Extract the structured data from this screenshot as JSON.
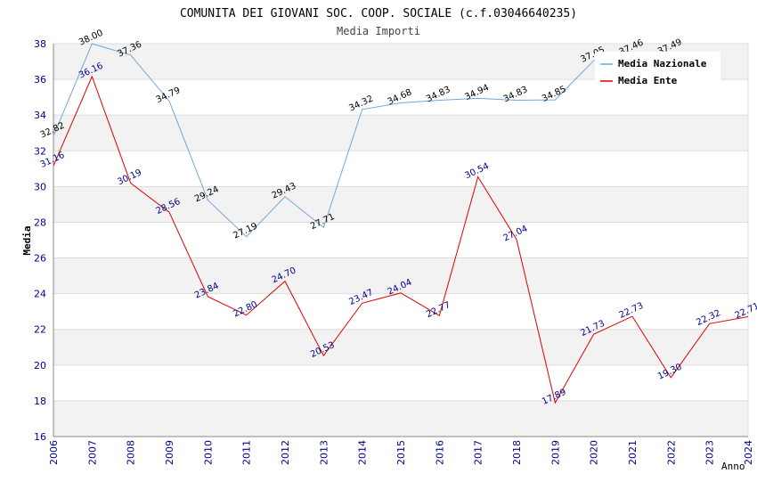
{
  "chart_data": {
    "type": "line",
    "title": "COMUNITA DEI GIOVANI SOC. COOP. SOCIALE (c.f.03046640235)",
    "subtitle": "Media Importi",
    "xlabel": "Anno",
    "ylabel": "Media",
    "ylim": [
      16,
      38
    ],
    "yticks": [
      "16",
      "18",
      "20",
      "22",
      "24",
      "26",
      "28",
      "30",
      "32",
      "34",
      "36",
      "38"
    ],
    "x": [
      "2006",
      "2007",
      "2008",
      "2009",
      "2010",
      "2011",
      "2012",
      "2013",
      "2014",
      "2015",
      "2016",
      "2017",
      "2018",
      "2019",
      "2020",
      "2021",
      "2022",
      "2023",
      "2024"
    ],
    "grid": true,
    "legend_position": "top-right",
    "series": [
      {
        "name": "Media Nazionale",
        "color": "#6fa8dc",
        "values": [
          32.82,
          38.0,
          37.36,
          34.79,
          29.24,
          27.19,
          29.43,
          27.71,
          34.32,
          34.68,
          34.83,
          34.94,
          34.83,
          34.85,
          37.05,
          37.46,
          37.49,
          null,
          null
        ],
        "labels": [
          "32.82",
          "38.00",
          "37.36",
          "34.79",
          "29.24",
          "27.19",
          "29.43",
          "27.71",
          "34.32",
          "34.68",
          "34.83",
          "34.94",
          "34.83",
          "34.85",
          "37.05",
          "37.46",
          "37.49",
          "",
          ""
        ]
      },
      {
        "name": "Media Ente",
        "color": "#e00000",
        "values": [
          31.16,
          36.16,
          30.19,
          28.56,
          23.84,
          22.8,
          24.7,
          20.53,
          23.47,
          24.04,
          22.77,
          30.54,
          27.04,
          17.89,
          21.73,
          22.73,
          19.3,
          22.32,
          22.71
        ],
        "labels": [
          "31.16",
          "36.16",
          "30.19",
          "28.56",
          "23.84",
          "22.80",
          "24.70",
          "20.53",
          "23.47",
          "24.04",
          "22.77",
          "30.54",
          "27.04",
          "17.89",
          "21.73",
          "22.73",
          "19.30",
          "22.32",
          "22.71"
        ]
      }
    ]
  }
}
